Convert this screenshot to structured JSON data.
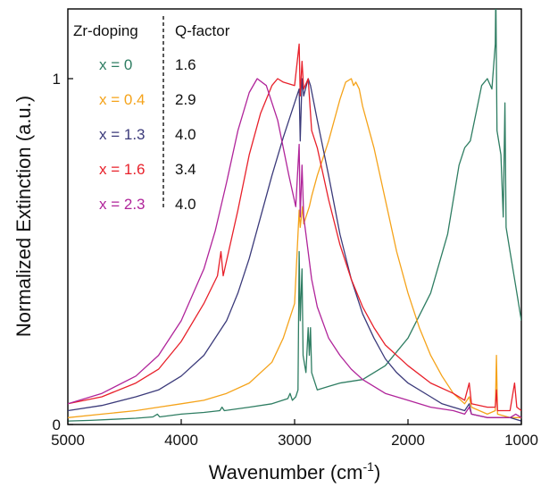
{
  "chart_data": {
    "type": "line",
    "title": "",
    "xlabel": "Wavenumber (cm",
    "xlabel_sup": "-1",
    "xlabel_end": ")",
    "ylabel": "Normalized Extinction (a.u.)",
    "xlim": [
      5000,
      1000
    ],
    "ylim": [
      0,
      1.0
    ],
    "x_reversed": true,
    "grid": false,
    "x_ticks": [
      5000,
      4000,
      3000,
      2000,
      1000
    ],
    "y_ticks": [
      0,
      1
    ],
    "legend": {
      "placement": "top-left",
      "header_left": "Zr-doping",
      "header_right": "Q-factor",
      "rows": [
        {
          "label": "x = 0",
          "q": "1.6",
          "color": "#2e7d62"
        },
        {
          "label": "x = 0.4",
          "q": "2.9",
          "color": "#f5a31a"
        },
        {
          "label": "x = 1.3",
          "q": "4.0",
          "color": "#3b3a7a"
        },
        {
          "label": "x = 1.6",
          "q": "3.4",
          "color": "#e8202a"
        },
        {
          "label": "x = 2.3",
          "q": "4.0",
          "color": "#b0249a"
        }
      ]
    },
    "series": [
      {
        "name": "x = 0",
        "color": "#2e7d62",
        "points": [
          [
            5000,
            0.01
          ],
          [
            4800,
            0.012
          ],
          [
            4600,
            0.015
          ],
          [
            4400,
            0.018
          ],
          [
            4250,
            0.022
          ],
          [
            4210,
            0.03
          ],
          [
            4190,
            0.022
          ],
          [
            4000,
            0.03
          ],
          [
            3800,
            0.035
          ],
          [
            3660,
            0.04
          ],
          [
            3640,
            0.05
          ],
          [
            3620,
            0.04
          ],
          [
            3400,
            0.05
          ],
          [
            3200,
            0.06
          ],
          [
            3060,
            0.075
          ],
          [
            3040,
            0.09
          ],
          [
            3020,
            0.07
          ],
          [
            2990,
            0.08
          ],
          [
            2970,
            0.1
          ],
          [
            2960,
            0.5
          ],
          [
            2950,
            0.3
          ],
          [
            2935,
            0.45
          ],
          [
            2925,
            0.2
          ],
          [
            2900,
            0.15
          ],
          [
            2880,
            0.28
          ],
          [
            2870,
            0.2
          ],
          [
            2860,
            0.28
          ],
          [
            2850,
            0.15
          ],
          [
            2800,
            0.1
          ],
          [
            2700,
            0.11
          ],
          [
            2600,
            0.12
          ],
          [
            2400,
            0.13
          ],
          [
            2200,
            0.17
          ],
          [
            2000,
            0.25
          ],
          [
            1800,
            0.38
          ],
          [
            1650,
            0.55
          ],
          [
            1550,
            0.75
          ],
          [
            1500,
            0.8
          ],
          [
            1450,
            0.82
          ],
          [
            1400,
            0.9
          ],
          [
            1350,
            0.98
          ],
          [
            1300,
            1.0
          ],
          [
            1260,
            0.97
          ],
          [
            1230,
            1.1
          ],
          [
            1225,
            1.25
          ],
          [
            1215,
            0.85
          ],
          [
            1180,
            0.78
          ],
          [
            1160,
            0.6
          ],
          [
            1145,
            0.93
          ],
          [
            1135,
            0.57
          ],
          [
            1100,
            0.5
          ],
          [
            1050,
            0.4
          ],
          [
            1000,
            0.3
          ]
        ]
      },
      {
        "name": "x = 0.4",
        "color": "#f5a31a",
        "points": [
          [
            5000,
            0.02
          ],
          [
            4700,
            0.03
          ],
          [
            4400,
            0.04
          ],
          [
            4200,
            0.05
          ],
          [
            4000,
            0.06
          ],
          [
            3800,
            0.07
          ],
          [
            3600,
            0.09
          ],
          [
            3400,
            0.12
          ],
          [
            3200,
            0.18
          ],
          [
            3100,
            0.25
          ],
          [
            3000,
            0.35
          ],
          [
            2960,
            0.62
          ],
          [
            2950,
            0.57
          ],
          [
            2930,
            0.63
          ],
          [
            2920,
            0.58
          ],
          [
            2900,
            0.6
          ],
          [
            2870,
            0.63
          ],
          [
            2850,
            0.66
          ],
          [
            2800,
            0.72
          ],
          [
            2700,
            0.82
          ],
          [
            2600,
            0.94
          ],
          [
            2550,
            0.99
          ],
          [
            2500,
            1.0
          ],
          [
            2480,
            0.98
          ],
          [
            2460,
            0.99
          ],
          [
            2430,
            0.97
          ],
          [
            2400,
            0.92
          ],
          [
            2300,
            0.8
          ],
          [
            2200,
            0.65
          ],
          [
            2100,
            0.5
          ],
          [
            2000,
            0.38
          ],
          [
            1900,
            0.28
          ],
          [
            1800,
            0.2
          ],
          [
            1700,
            0.14
          ],
          [
            1600,
            0.09
          ],
          [
            1500,
            0.06
          ],
          [
            1460,
            0.08
          ],
          [
            1440,
            0.05
          ],
          [
            1300,
            0.03
          ],
          [
            1230,
            0.04
          ],
          [
            1220,
            0.2
          ],
          [
            1210,
            0.03
          ],
          [
            1100,
            0.02
          ],
          [
            1000,
            0.02
          ]
        ]
      },
      {
        "name": "x = 1.3",
        "color": "#3b3a7a",
        "points": [
          [
            5000,
            0.04
          ],
          [
            4700,
            0.055
          ],
          [
            4400,
            0.08
          ],
          [
            4200,
            0.1
          ],
          [
            4000,
            0.14
          ],
          [
            3800,
            0.2
          ],
          [
            3600,
            0.3
          ],
          [
            3500,
            0.38
          ],
          [
            3400,
            0.48
          ],
          [
            3300,
            0.6
          ],
          [
            3200,
            0.72
          ],
          [
            3100,
            0.83
          ],
          [
            3000,
            0.93
          ],
          [
            2960,
            0.97
          ],
          [
            2950,
            0.82
          ],
          [
            2935,
            1.0
          ],
          [
            2920,
            0.95
          ],
          [
            2880,
            1.0
          ],
          [
            2860,
            0.98
          ],
          [
            2800,
            0.88
          ],
          [
            2700,
            0.72
          ],
          [
            2600,
            0.55
          ],
          [
            2500,
            0.42
          ],
          [
            2400,
            0.32
          ],
          [
            2300,
            0.25
          ],
          [
            2200,
            0.19
          ],
          [
            2100,
            0.15
          ],
          [
            2000,
            0.12
          ],
          [
            1800,
            0.08
          ],
          [
            1700,
            0.06
          ],
          [
            1500,
            0.04
          ],
          [
            1460,
            0.06
          ],
          [
            1440,
            0.03
          ],
          [
            1300,
            0.02
          ],
          [
            1100,
            0.02
          ],
          [
            1000,
            0.01
          ]
        ]
      },
      {
        "name": "x = 1.6",
        "color": "#e8202a",
        "points": [
          [
            5000,
            0.06
          ],
          [
            4700,
            0.08
          ],
          [
            4400,
            0.12
          ],
          [
            4200,
            0.16
          ],
          [
            4000,
            0.24
          ],
          [
            3800,
            0.35
          ],
          [
            3680,
            0.43
          ],
          [
            3650,
            0.5
          ],
          [
            3630,
            0.43
          ],
          [
            3500,
            0.62
          ],
          [
            3400,
            0.78
          ],
          [
            3300,
            0.9
          ],
          [
            3200,
            0.98
          ],
          [
            3150,
            1.0
          ],
          [
            3100,
            0.99
          ],
          [
            3000,
            0.98
          ],
          [
            2960,
            1.1
          ],
          [
            2950,
            0.95
          ],
          [
            2935,
            1.05
          ],
          [
            2920,
            0.97
          ],
          [
            2880,
            1.0
          ],
          [
            2850,
            0.85
          ],
          [
            2800,
            0.8
          ],
          [
            2700,
            0.65
          ],
          [
            2600,
            0.52
          ],
          [
            2500,
            0.42
          ],
          [
            2400,
            0.34
          ],
          [
            2300,
            0.28
          ],
          [
            2200,
            0.23
          ],
          [
            2000,
            0.17
          ],
          [
            1800,
            0.12
          ],
          [
            1600,
            0.09
          ],
          [
            1500,
            0.07
          ],
          [
            1460,
            0.12
          ],
          [
            1440,
            0.06
          ],
          [
            1300,
            0.05
          ],
          [
            1230,
            0.05
          ],
          [
            1220,
            0.1
          ],
          [
            1210,
            0.04
          ],
          [
            1100,
            0.04
          ],
          [
            1060,
            0.12
          ],
          [
            1040,
            0.05
          ],
          [
            1000,
            0.04
          ]
        ]
      },
      {
        "name": "x = 2.3",
        "color": "#b0249a",
        "points": [
          [
            5000,
            0.06
          ],
          [
            4700,
            0.09
          ],
          [
            4400,
            0.14
          ],
          [
            4200,
            0.2
          ],
          [
            4000,
            0.3
          ],
          [
            3800,
            0.45
          ],
          [
            3700,
            0.56
          ],
          [
            3600,
            0.7
          ],
          [
            3500,
            0.85
          ],
          [
            3400,
            0.96
          ],
          [
            3330,
            1.0
          ],
          [
            3250,
            0.98
          ],
          [
            3150,
            0.88
          ],
          [
            3050,
            0.72
          ],
          [
            2990,
            0.63
          ],
          [
            2960,
            0.81
          ],
          [
            2950,
            0.6
          ],
          [
            2935,
            0.75
          ],
          [
            2920,
            0.6
          ],
          [
            2900,
            0.55
          ],
          [
            2850,
            0.42
          ],
          [
            2800,
            0.34
          ],
          [
            2700,
            0.25
          ],
          [
            2600,
            0.2
          ],
          [
            2500,
            0.16
          ],
          [
            2400,
            0.13
          ],
          [
            2300,
            0.11
          ],
          [
            2200,
            0.09
          ],
          [
            2000,
            0.07
          ],
          [
            1800,
            0.05
          ],
          [
            1600,
            0.04
          ],
          [
            1500,
            0.03
          ],
          [
            1460,
            0.05
          ],
          [
            1440,
            0.03
          ],
          [
            1300,
            0.02
          ],
          [
            1100,
            0.02
          ],
          [
            1050,
            0.03
          ],
          [
            1000,
            0.02
          ]
        ]
      }
    ]
  }
}
